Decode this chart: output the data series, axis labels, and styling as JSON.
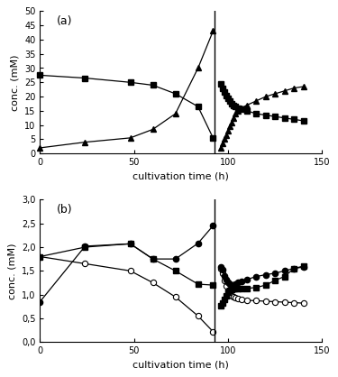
{
  "panel_a": {
    "glucose": {
      "x_growth": [
        0,
        24,
        48,
        60,
        72,
        84,
        92
      ],
      "y_growth": [
        27.5,
        26.5,
        25.0,
        24.0,
        21.0,
        16.5,
        5.5
      ],
      "x_virus": [
        96,
        97,
        98,
        99,
        100,
        101,
        102,
        103,
        104,
        105,
        107,
        110,
        115,
        120,
        125,
        130,
        135,
        140
      ],
      "y_virus": [
        24.5,
        23.0,
        21.5,
        20.5,
        19.5,
        18.5,
        17.5,
        17.0,
        16.5,
        16.0,
        15.5,
        15.0,
        14.0,
        13.5,
        13.0,
        12.5,
        12.0,
        11.5
      ]
    },
    "lactate": {
      "x_growth": [
        0,
        24,
        48,
        60,
        72,
        84,
        92
      ],
      "y_growth": [
        2.0,
        4.0,
        5.5,
        8.5,
        14.0,
        30.0,
        43.0
      ],
      "x_virus": [
        96,
        97,
        98,
        99,
        100,
        101,
        102,
        103,
        104,
        105,
        107,
        110,
        115,
        120,
        125,
        130,
        135,
        140
      ],
      "y_virus": [
        2.0,
        3.5,
        5.0,
        6.5,
        8.0,
        9.5,
        11.0,
        12.5,
        14.0,
        15.0,
        16.0,
        17.0,
        18.5,
        20.0,
        21.0,
        22.0,
        23.0,
        23.5
      ]
    },
    "ylim": [
      0,
      50
    ],
    "yticks": [
      0,
      5,
      10,
      15,
      20,
      25,
      30,
      35,
      40,
      45,
      50
    ],
    "ylabel": "conc. (mM)",
    "xlabel": "cultivation time (h)",
    "xlim": [
      0,
      150
    ],
    "xticks": [
      0,
      50,
      100,
      150
    ],
    "vline": 93,
    "label": "(a)"
  },
  "panel_b": {
    "total_glutamine": {
      "x_growth": [
        0,
        24,
        48,
        60,
        72,
        84,
        92
      ],
      "y_growth": [
        1.8,
        1.65,
        1.5,
        1.25,
        0.95,
        0.55,
        0.22
      ],
      "x_virus": [
        96,
        97,
        98,
        99,
        100,
        101,
        102,
        103,
        104,
        105,
        107,
        110,
        115,
        120,
        125,
        130,
        135,
        140
      ],
      "y_virus": [
        1.55,
        1.45,
        1.3,
        1.18,
        1.08,
        1.02,
        0.98,
        0.95,
        0.93,
        0.92,
        0.9,
        0.88,
        0.87,
        0.86,
        0.85,
        0.84,
        0.83,
        0.82
      ]
    },
    "glutamine_no_decomp": {
      "x_growth": [
        0,
        24,
        48,
        60,
        72,
        84,
        92
      ],
      "y_growth": [
        0.85,
        2.02,
        2.07,
        1.75,
        1.75,
        2.08,
        2.45
      ],
      "x_virus": [
        96,
        97,
        98,
        99,
        100,
        101,
        102,
        103,
        104,
        105,
        107,
        110,
        115,
        120,
        125,
        130,
        135,
        140
      ],
      "y_virus": [
        1.58,
        1.52,
        1.4,
        1.32,
        1.25,
        1.22,
        1.2,
        1.2,
        1.22,
        1.25,
        1.28,
        1.32,
        1.38,
        1.42,
        1.45,
        1.5,
        1.55,
        1.58
      ]
    },
    "ammonium": {
      "x_growth": [
        0,
        24,
        48,
        60,
        72,
        84,
        92
      ],
      "y_growth": [
        1.8,
        2.0,
        2.07,
        1.75,
        1.5,
        1.22,
        1.2
      ],
      "x_virus": [
        96,
        97,
        98,
        99,
        100,
        101,
        102,
        103,
        104,
        105,
        107,
        110,
        115,
        120,
        125,
        130,
        135,
        140
      ],
      "y_virus": [
        0.77,
        0.82,
        0.9,
        0.98,
        1.05,
        1.08,
        1.1,
        1.12,
        1.12,
        1.12,
        1.12,
        1.13,
        1.15,
        1.2,
        1.3,
        1.38,
        1.55,
        1.6
      ]
    },
    "ylim": [
      0.0,
      3.0
    ],
    "yticks": [
      0.0,
      0.5,
      1.0,
      1.5,
      2.0,
      2.5,
      3.0
    ],
    "yticklabels": [
      "0,0",
      "0,5",
      "1,0",
      "1,5",
      "2,0",
      "2,5",
      "3,0"
    ],
    "ylabel": "conc. (mM)",
    "xlabel": "cultivation time (h)",
    "xlim": [
      0,
      150
    ],
    "xticks": [
      0,
      50,
      100,
      150
    ],
    "vline": 93,
    "label": "(b)"
  },
  "line_color": "black",
  "bg_color": "white",
  "marker_size": 4.5,
  "linewidth": 0.9
}
